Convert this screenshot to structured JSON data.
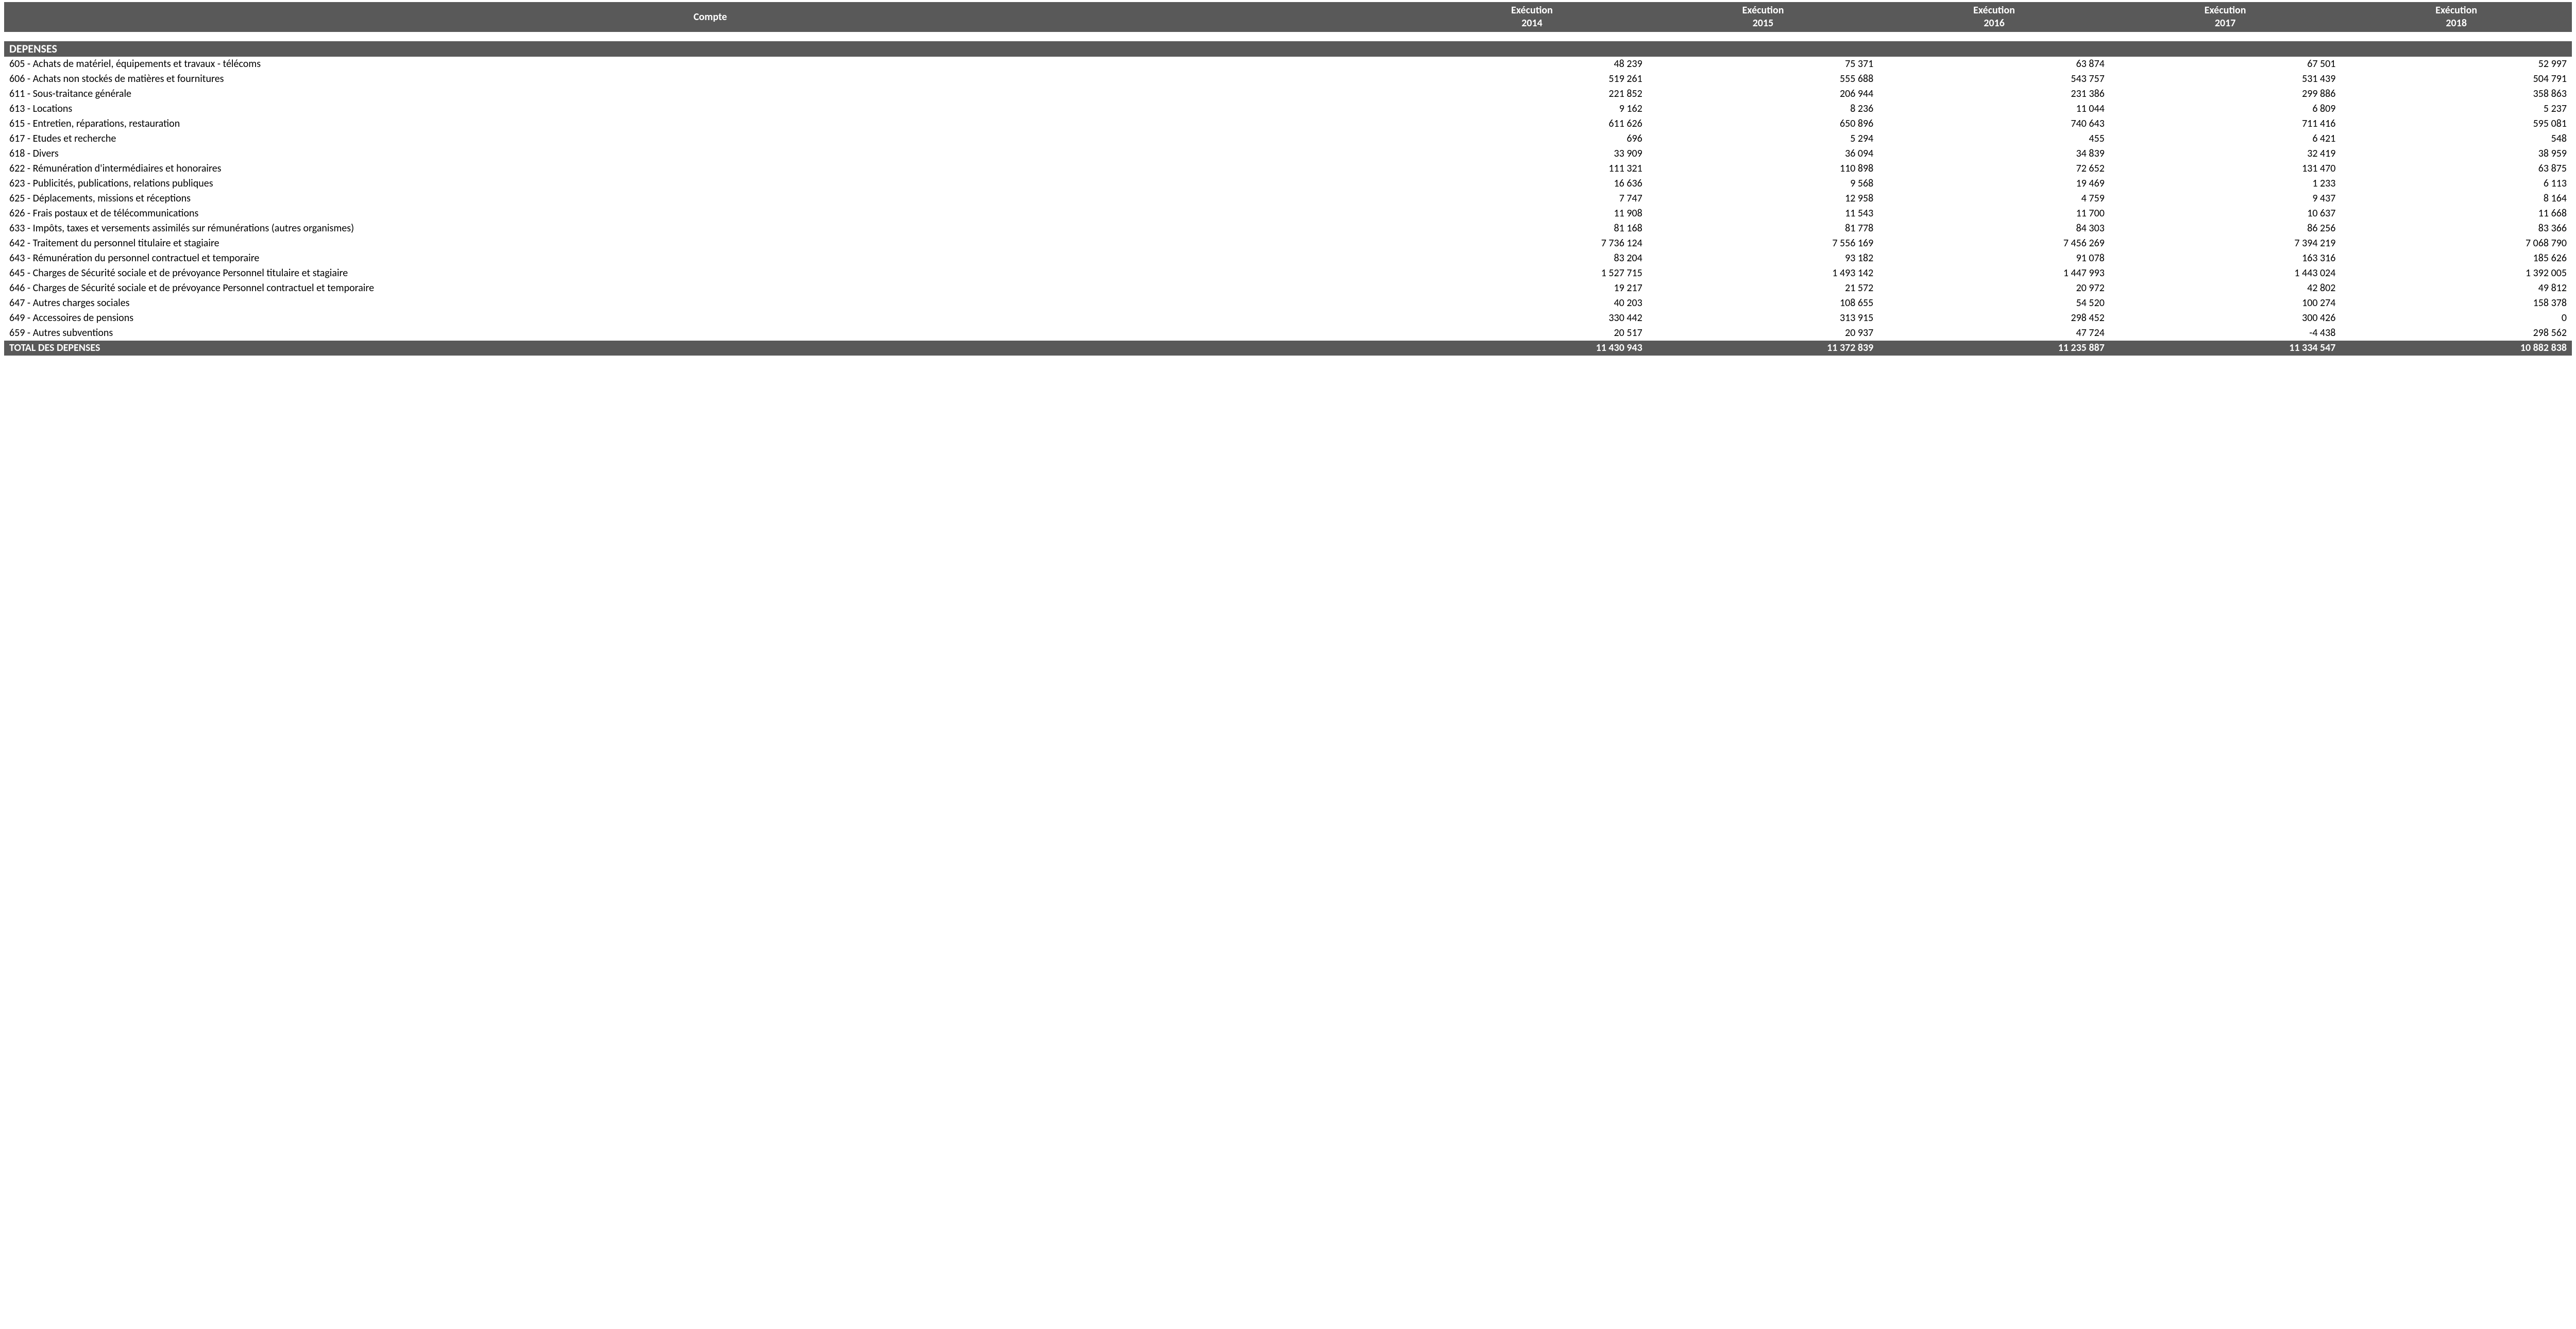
{
  "table": {
    "type": "table",
    "background_color": "#ffffff",
    "header_bg": "#595959",
    "header_fg": "#ffffff",
    "section_bg": "#595959",
    "section_fg": "#ffffff",
    "total_bg": "#595959",
    "total_fg": "#ffffff",
    "body_fg": "#000000",
    "font_family": "Calibri",
    "body_fontsize_pt": 15,
    "header_fontsize_pt": 15,
    "thousands_separator": " ",
    "column_label": "Compte",
    "year_header_prefix": "Exécution",
    "years": [
      "2014",
      "2015",
      "2016",
      "2017",
      "2018"
    ],
    "column_widths_pct": [
      55,
      9,
      9,
      9,
      9,
      9
    ],
    "value_align": "right",
    "label_align": "left",
    "section_title": "DEPENSES",
    "rows": [
      {
        "label": "605 - Achats de matériel, équipements et travaux - télécoms",
        "values": [
          "48 239",
          "75 371",
          "63 874",
          "67 501",
          "52 997"
        ]
      },
      {
        "label": "606 - Achats non stockés de matières et fournitures",
        "values": [
          "519 261",
          "555 688",
          "543 757",
          "531 439",
          "504 791"
        ]
      },
      {
        "label": "611 - Sous-traitance générale",
        "values": [
          "221 852",
          "206 944",
          "231 386",
          "299 886",
          "358 863"
        ]
      },
      {
        "label": "613 - Locations",
        "values": [
          "9 162",
          "8 236",
          "11 044",
          "6 809",
          "5 237"
        ]
      },
      {
        "label": "615 - Entretien, réparations, restauration",
        "values": [
          "611 626",
          "650 896",
          "740 643",
          "711 416",
          "595 081"
        ]
      },
      {
        "label": "617 - Etudes et recherche",
        "values": [
          "696",
          "5 294",
          "455",
          "6 421",
          "548"
        ]
      },
      {
        "label": "618 - Divers",
        "values": [
          "33 909",
          "36 094",
          "34 839",
          "32 419",
          "38 959"
        ]
      },
      {
        "label": "622 - Rémunération d'intermédiaires et honoraires",
        "values": [
          "111 321",
          "110 898",
          "72 652",
          "131 470",
          "63 875"
        ]
      },
      {
        "label": "623 - Publicités, publications, relations publiques",
        "values": [
          "16 636",
          "9 568",
          "19 469",
          "1 233",
          "6 113"
        ]
      },
      {
        "label": "625 - Déplacements, missions et réceptions",
        "values": [
          "7 747",
          "12 958",
          "4 759",
          "9 437",
          "8 164"
        ]
      },
      {
        "label": "626 - Frais postaux et de télécommunications",
        "values": [
          "11 908",
          "11 543",
          "11 700",
          "10 637",
          "11 668"
        ]
      },
      {
        "label": "633 - Impôts, taxes et versements assimilés sur rémunérations (autres organismes)",
        "values": [
          "81 168",
          "81 778",
          "84 303",
          "86 256",
          "83 366"
        ]
      },
      {
        "label": "642 - Traitement du personnel titulaire et stagiaire",
        "values": [
          "7 736 124",
          "7 556 169",
          "7 456 269",
          "7 394 219",
          "7 068 790"
        ]
      },
      {
        "label": "643 - Rémunération du personnel contractuel et temporaire",
        "values": [
          "83 204",
          "93 182",
          "91 078",
          "163 316",
          "185 626"
        ]
      },
      {
        "label": "645 - Charges de Sécurité sociale et de prévoyance Personnel titulaire et stagiaire",
        "values": [
          "1 527 715",
          "1 493 142",
          "1 447 993",
          "1 443 024",
          "1 392 005"
        ]
      },
      {
        "label": "646 - Charges de Sécurité sociale et de prévoyance Personnel contractuel et temporaire",
        "values": [
          "19 217",
          "21 572",
          "20 972",
          "42 802",
          "49 812"
        ]
      },
      {
        "label": "647 - Autres charges sociales",
        "values": [
          "40 203",
          "108 655",
          "54 520",
          "100 274",
          "158 378"
        ]
      },
      {
        "label": "649 - Accessoires de pensions",
        "values": [
          "330 442",
          "313 915",
          "298 452",
          "300 426",
          "0"
        ]
      },
      {
        "label": "659 - Autres subventions",
        "values": [
          "20 517",
          "20 937",
          "47 724",
          "-4 438",
          "298 562"
        ]
      }
    ],
    "total": {
      "label": "TOTAL DES DEPENSES",
      "values": [
        "11 430 943",
        "11 372 839",
        "11 235 887",
        "11 334 547",
        "10 882 838"
      ]
    }
  }
}
